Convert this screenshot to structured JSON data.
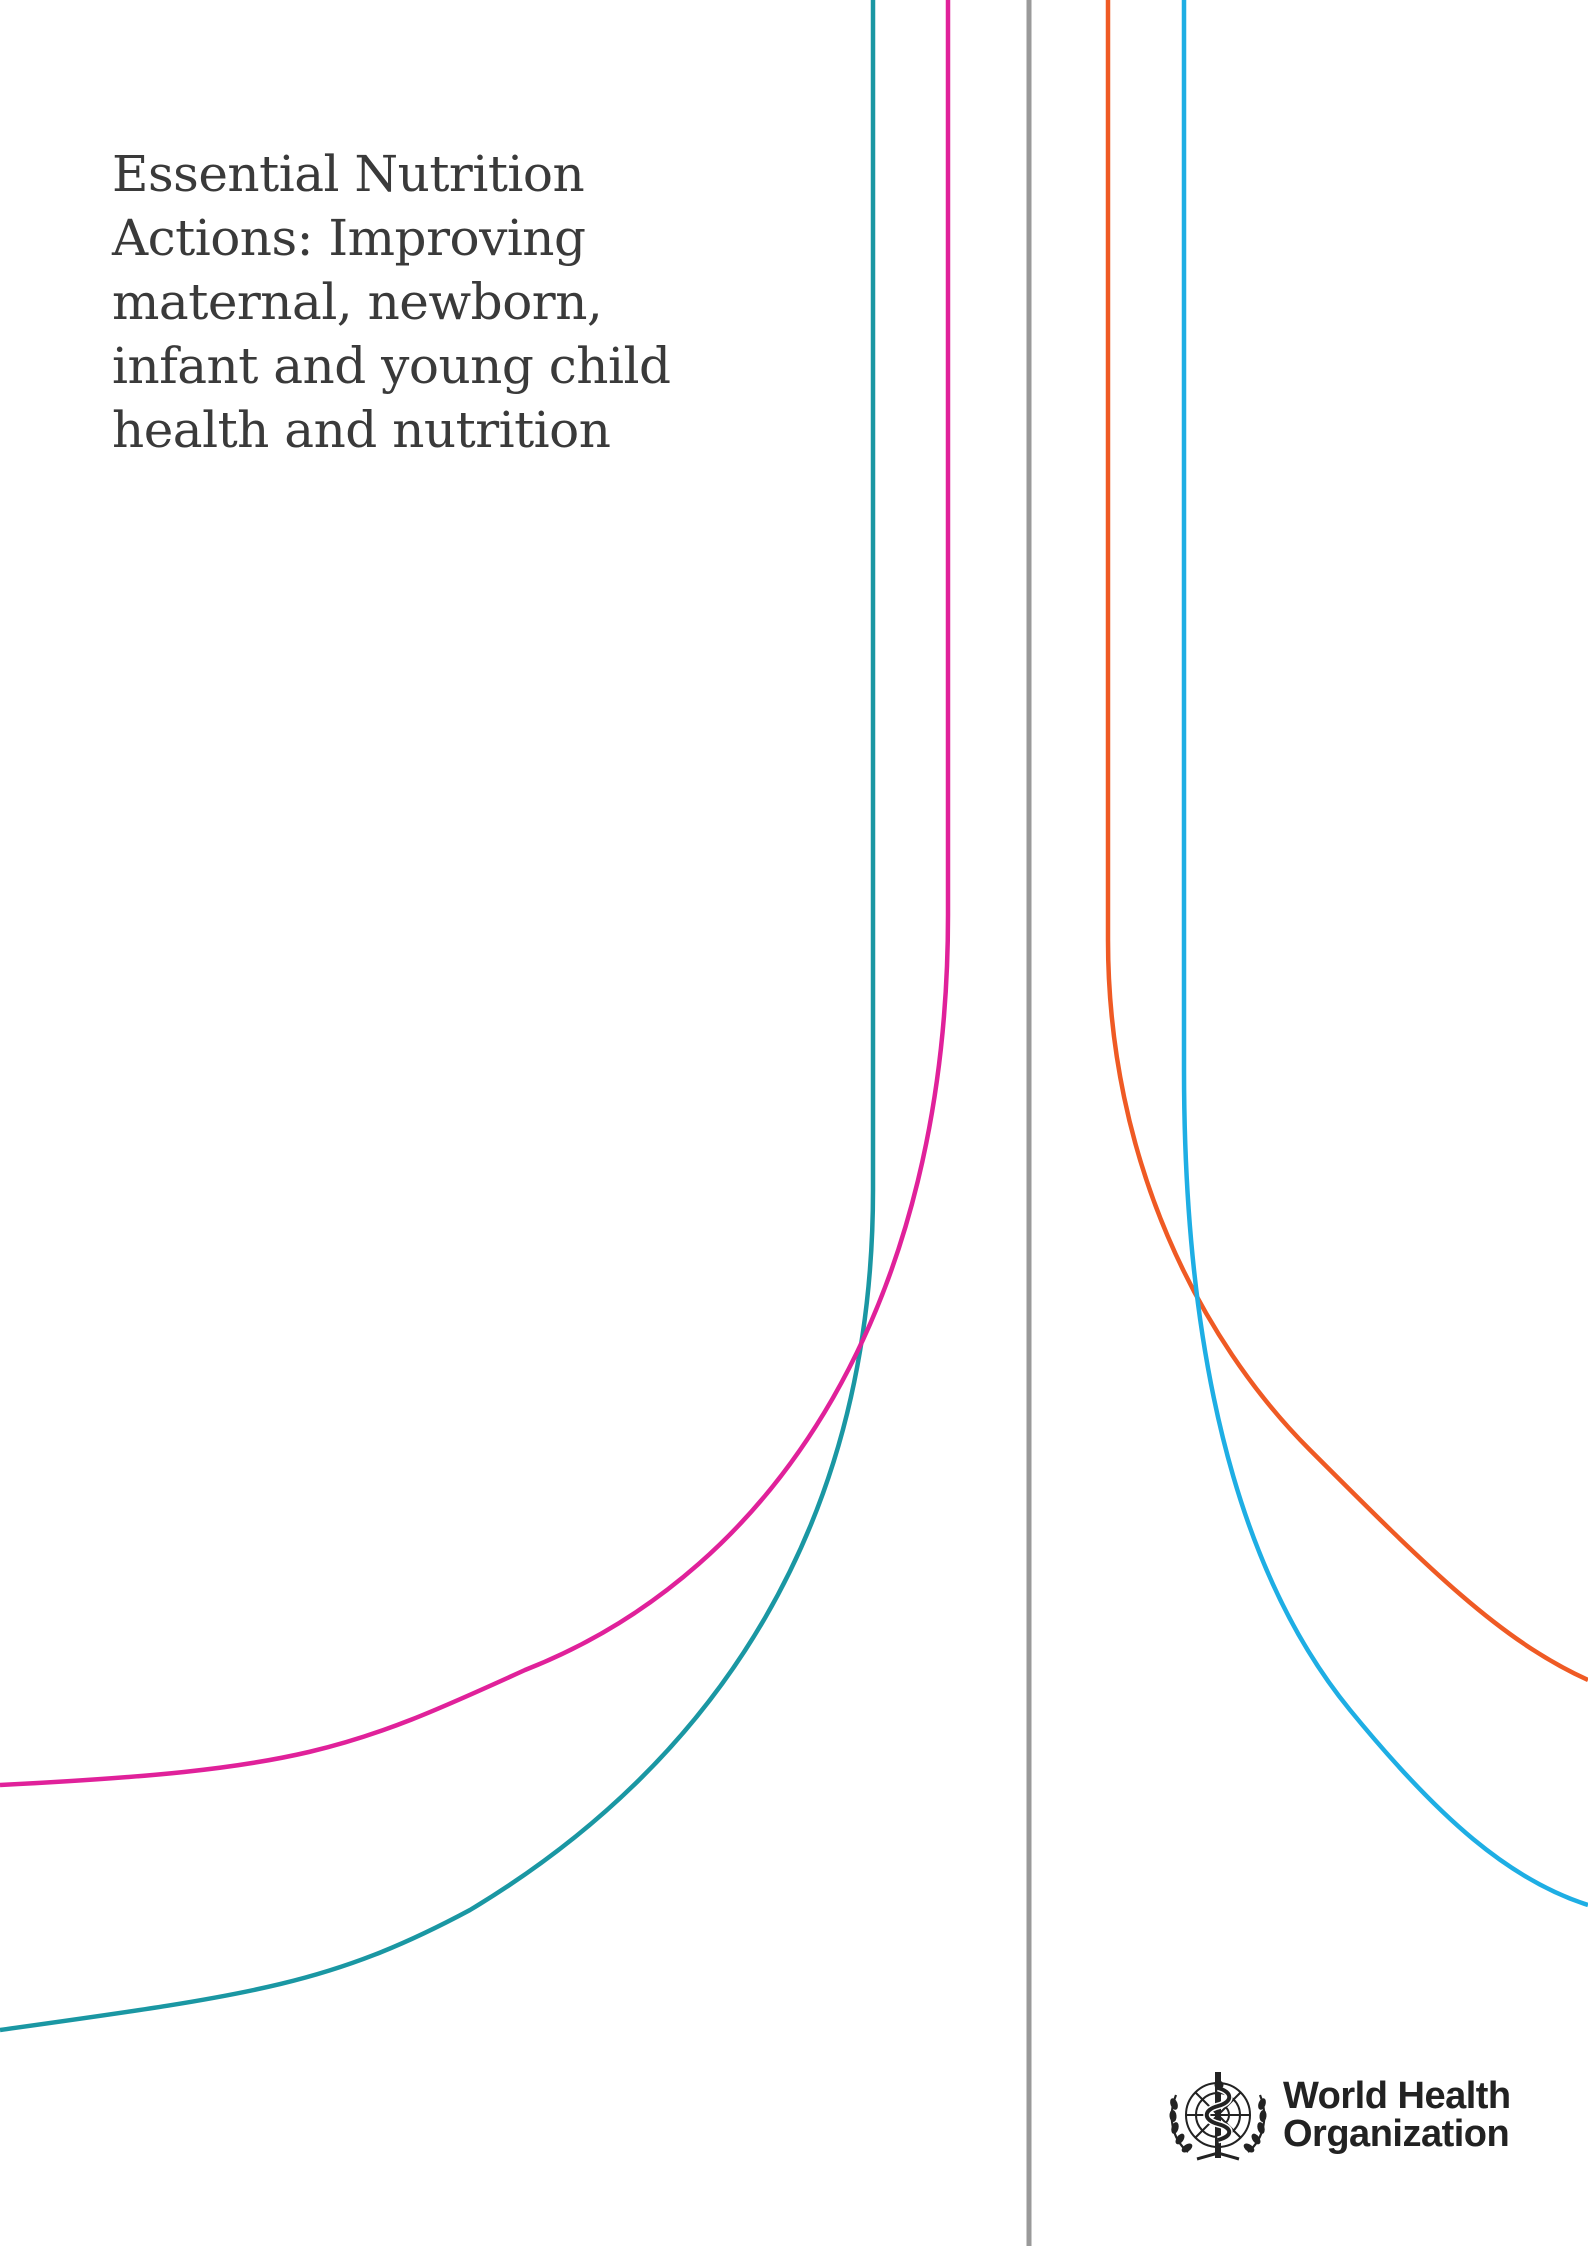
{
  "title_lines": [
    "Essential Nutrition",
    "Actions: Improving",
    "maternal, newborn,",
    "infant and young child",
    "health and nutrition"
  ],
  "organization": {
    "name_line1": "World Health",
    "name_line2": "Organization",
    "emblem_icon": "who-emblem-icon",
    "text_color": "#222222"
  },
  "decorative_lines": {
    "teal": "#1a97a3",
    "magenta": "#e0219a",
    "gray_divider": "#9a9a9a",
    "orange": "#ef5a24",
    "sky_blue": "#1eaee4"
  }
}
